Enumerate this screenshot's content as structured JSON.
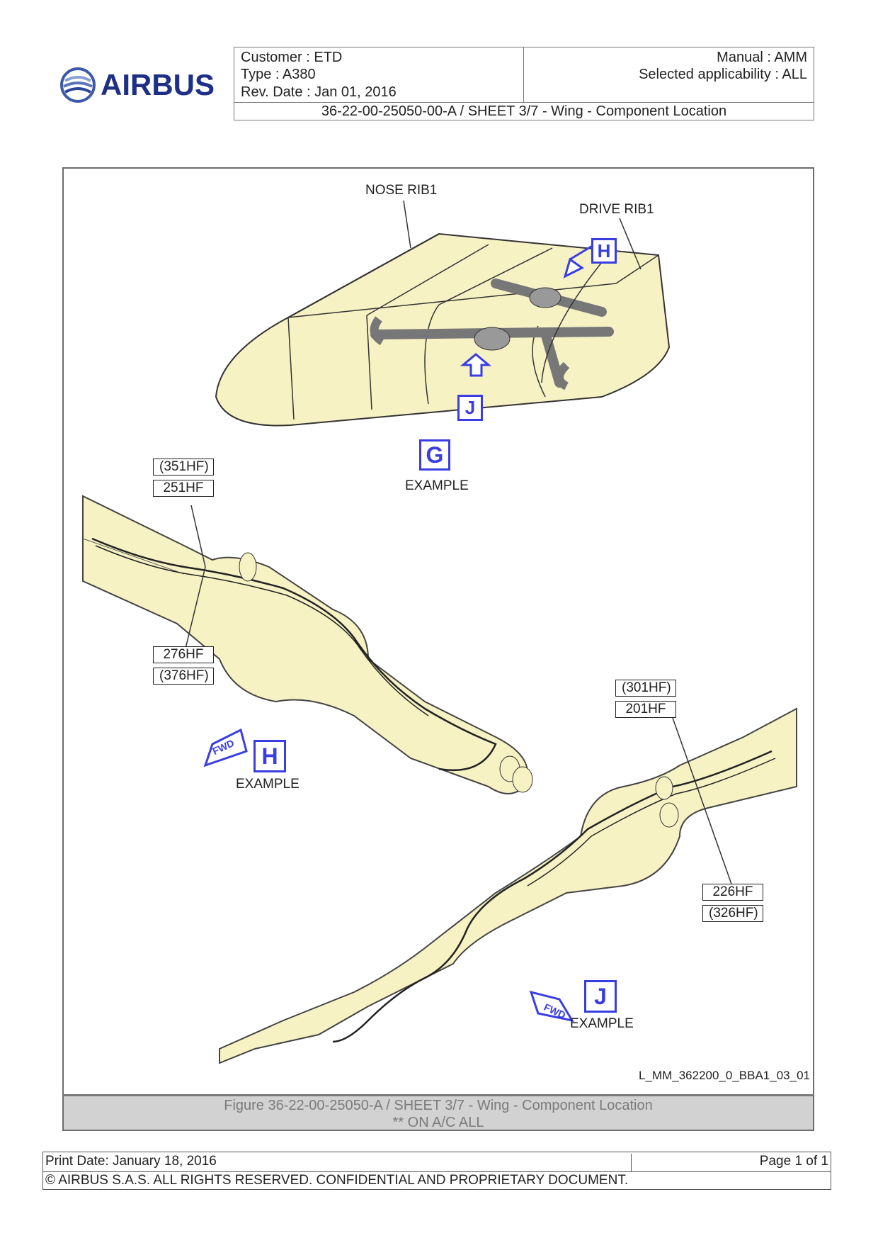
{
  "header": {
    "logo_text": "AIRBUS",
    "customer": "Customer : ETD",
    "type": "Type : A380",
    "rev_date": "Rev. Date : Jan 01, 2016",
    "manual": "Manual : AMM",
    "applicability": "Selected applicability : ALL",
    "sheet_title": "36-22-00-25050-00-A / SHEET 3/7 - Wing - Component Location"
  },
  "figure": {
    "labels": {
      "nose_rib": "NOSE RIB1",
      "drive_rib": "DRIVE RIB1",
      "example": "EXAMPLE"
    },
    "views": {
      "g": "G",
      "h": "H",
      "j": "J"
    },
    "fwd": "FWD",
    "refs_h_top": [
      "(351HF)",
      "251HF"
    ],
    "refs_h_bottom": [
      "276HF",
      "(376HF)"
    ],
    "refs_j_top": [
      "(301HF)",
      "201HF"
    ],
    "refs_j_bottom": [
      "226HF",
      "(326HF)"
    ],
    "figure_id": "L_MM_362200_0_BBA1_03_01",
    "caption_line1": "Figure 36-22-00-25050-A / SHEET 3/7 - Wing - Component Location",
    "caption_line2": "** ON A/C ALL"
  },
  "footer": {
    "print_date": "Print Date: January 18, 2016",
    "page": "Page 1 of 1",
    "copyright": "© AIRBUS S.A.S. ALL RIGHTS RESERVED. CONFIDENTIAL AND PROPRIETARY DOCUMENT."
  },
  "colors": {
    "accent_blue": "#3a3ee0",
    "part_fill": "#f7f2c4",
    "caption_bg": "#d2d2d2",
    "logo_blue": "#1e2f86"
  }
}
